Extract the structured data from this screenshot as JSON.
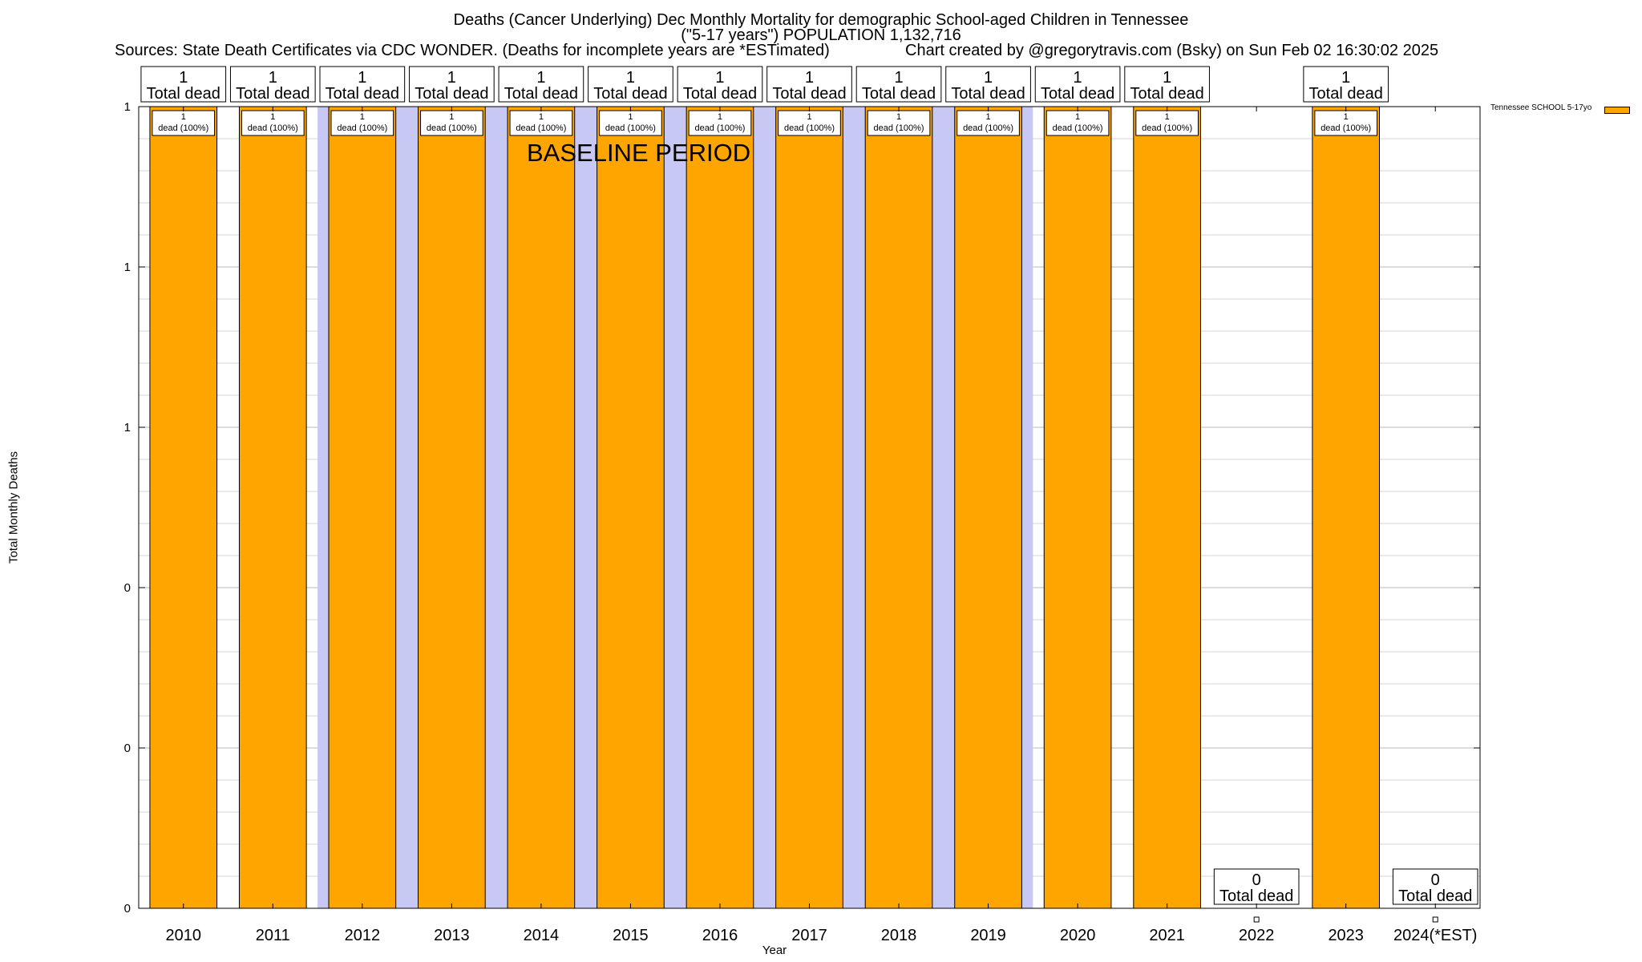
{
  "title": {
    "line1": "Deaths (Cancer Underlying) Dec Monthly Mortality for demographic School-aged Children in Tennessee",
    "line2": "(\"5-17 years\") POPULATION 1,132,716",
    "sources": "Sources: State Death Certificates via CDC WONDER. (Deaths for incomplete years are *ESTimated)",
    "credit": "Chart created by @gregorytravis.com (Bsky) on Sun Feb 02 16:30:02 2025"
  },
  "labels": {
    "baseline": "BASELINE PERIOD",
    "total_dead": "Total dead",
    "dead_pct": "dead (100%)"
  },
  "chart_data": {
    "type": "bar",
    "title": "Deaths (Cancer Underlying) Dec Monthly Mortality for demographic School-aged Children in Tennessee",
    "xlabel": "Year",
    "ylabel": "Total Monthly Deaths",
    "categories": [
      "2010",
      "2011",
      "2012",
      "2013",
      "2014",
      "2015",
      "2016",
      "2017",
      "2018",
      "2019",
      "2020",
      "2021",
      "2022",
      "2023",
      "2024(*EST)"
    ],
    "series": [
      {
        "name": "Tennessee SCHOOL 5-17yo",
        "color": "#ffa500",
        "values": [
          1,
          1,
          1,
          1,
          1,
          1,
          1,
          1,
          1,
          1,
          1,
          1,
          0,
          1,
          0
        ]
      }
    ],
    "total_labels": [
      "1",
      "1",
      "1",
      "1",
      "1",
      "1",
      "1",
      "1",
      "1",
      "1",
      "1",
      "1",
      "0",
      "1",
      "0"
    ],
    "ylim": [
      0,
      1
    ],
    "yticks": [
      0,
      0.2,
      0.4,
      0.6,
      0.8,
      1
    ],
    "ytick_labels": [
      "0",
      "0",
      "0",
      "1",
      "1",
      "1"
    ],
    "baseline_years": [
      "2012",
      "2013",
      "2014",
      "2015",
      "2016",
      "2017",
      "2018",
      "2019"
    ],
    "baseline_color": "#c8c8f5",
    "grid": true,
    "legend_position": "top-right"
  }
}
